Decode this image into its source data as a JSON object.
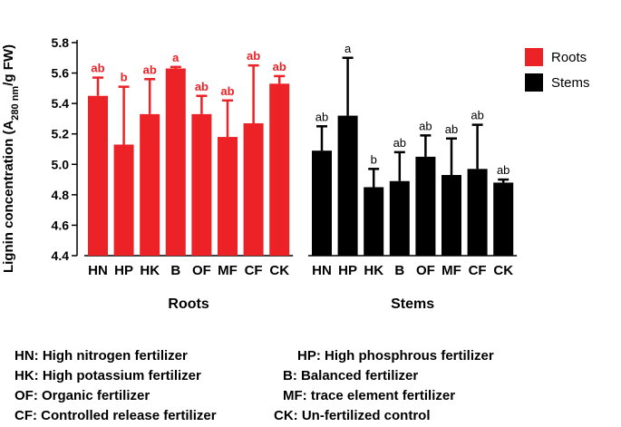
{
  "chart_data": {
    "type": "bar",
    "ylabel": "Lignin concentration (A280 nm/g FW)",
    "ylabel_parts": {
      "pre": "Lignin concentration (A",
      "sub": "280 nm",
      "post": "/g FW)"
    },
    "ylim": [
      4.4,
      5.8
    ],
    "yticks": [
      "4.4",
      "4.6",
      "4.8",
      "5.0",
      "5.2",
      "5.4",
      "5.6",
      "5.8"
    ],
    "legend_position": "top-right",
    "groups": [
      {
        "name": "Roots",
        "color": "#ec2227",
        "categories": [
          "HN",
          "HP",
          "HK",
          "B",
          "OF",
          "MF",
          "CF",
          "CK"
        ],
        "values": [
          5.45,
          5.13,
          5.33,
          5.63,
          5.33,
          5.18,
          5.27,
          5.53
        ],
        "errors": [
          0.12,
          0.38,
          0.23,
          0.01,
          0.12,
          0.24,
          0.38,
          0.05
        ],
        "significance": [
          "ab",
          "b",
          "ab",
          "a",
          "ab",
          "ab",
          "ab",
          "ab"
        ]
      },
      {
        "name": "Stems",
        "color": "#000000",
        "categories": [
          "HN",
          "HP",
          "HK",
          "B",
          "OF",
          "MF",
          "CF",
          "CK"
        ],
        "values": [
          5.09,
          5.32,
          4.85,
          4.89,
          5.05,
          4.93,
          4.97,
          4.88
        ],
        "errors": [
          0.16,
          0.38,
          0.12,
          0.19,
          0.14,
          0.24,
          0.29,
          0.02
        ],
        "significance": [
          "ab",
          "a",
          "b",
          "ab",
          "ab",
          "ab",
          "ab",
          "ab"
        ]
      }
    ],
    "legend": [
      "Roots",
      "Stems"
    ]
  },
  "notes": [
    "HN: High nitrogen fertilizer",
    "HP: High phosphrous fertilizer",
    "HK: High potassium fertilizer",
    "B: Balanced fertilizer",
    "OF: Organic fertilizer",
    "MF: trace element fertilizer",
    "CF: Controlled release fertilizer",
    "CK: Un-fertilized control"
  ]
}
